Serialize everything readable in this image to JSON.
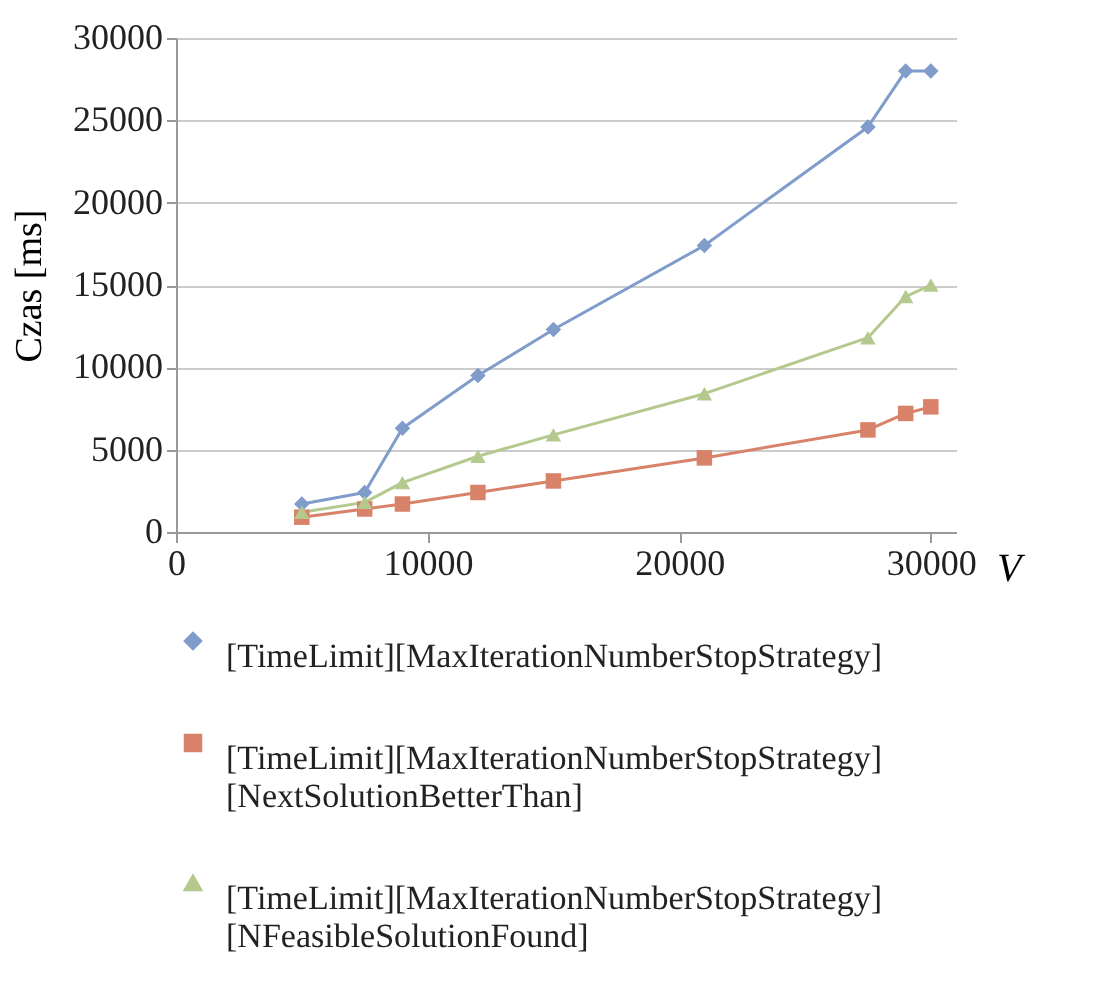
{
  "chart_data": {
    "type": "line",
    "xlabel": "V",
    "ylabel": "Czas [ms]",
    "x": [
      5000,
      7500,
      9000,
      12000,
      15000,
      21000,
      27500,
      29000,
      30000
    ],
    "series": [
      {
        "name": "[TimeLimit][MaxIterationNumberStopStrategy]",
        "color": "#7f9ccb",
        "marker": "diamond",
        "values": [
          1700,
          2400,
          6300,
          9500,
          12300,
          17400,
          24600,
          28000,
          28000
        ]
      },
      {
        "name": "[TimeLimit][MaxIterationNumberStopStrategy]\n[NextSolutionBetterThan]",
        "color": "#d9826a",
        "marker": "square",
        "values": [
          900,
          1400,
          1700,
          2400,
          3100,
          4500,
          6200,
          7200,
          7600
        ]
      },
      {
        "name": "[TimeLimit][MaxIterationNumberStopStrategy]\n[NFeasibleSolutionFound]",
        "color": "#b5c98e",
        "marker": "triangle",
        "values": [
          1200,
          1800,
          3000,
          4600,
          5900,
          8400,
          11800,
          14300,
          15000
        ]
      }
    ],
    "xlim": [
      0,
      31000
    ],
    "xticks": [
      0,
      10000,
      20000,
      30000
    ],
    "ylim": [
      0,
      30000
    ],
    "yticks": [
      0,
      5000,
      10000,
      15000,
      20000,
      25000,
      30000
    ],
    "grid": "y",
    "legend": "bottom"
  }
}
